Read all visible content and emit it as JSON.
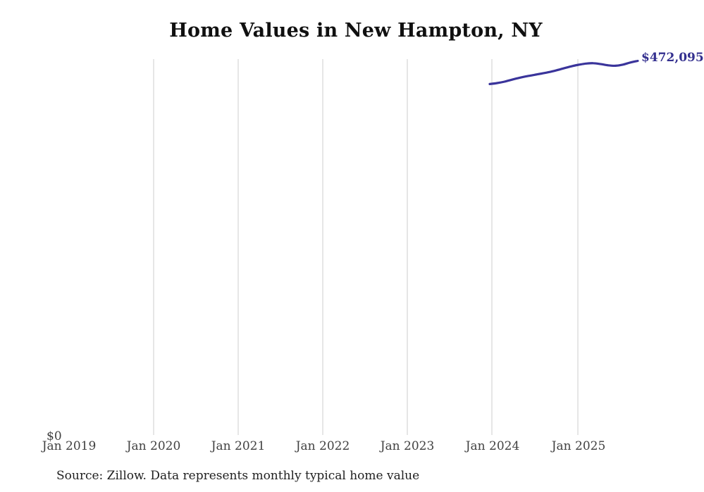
{
  "title": "Home Values in New Hampton, NY",
  "source_note": "Source: Zillow. Data represents monthly typical home value",
  "end_value_label": "$472,095",
  "axis": {
    "y_zero_label": "$0",
    "x_ticks": [
      "Jan 2019",
      "Jan 2020",
      "Jan 2021",
      "Jan 2022",
      "Jan 2023",
      "Jan 2024",
      "Jan 2025"
    ]
  },
  "colors": {
    "line": "#3a349b",
    "end_label_text": "#34308f",
    "gridline": "#cccccc",
    "axis_text": "#414141",
    "title_text": "#101010",
    "source_text": "#1f1f1f"
  },
  "chart_data": {
    "type": "line",
    "title": "Home Values in New Hampton, NY",
    "xlabel": "",
    "ylabel": "",
    "x_axis_tick_labels": [
      "Jan 2019",
      "Jan 2020",
      "Jan 2021",
      "Jan 2022",
      "Jan 2023",
      "Jan 2024",
      "Jan 2025"
    ],
    "ylim": [
      0,
      475000
    ],
    "grid": "vertical-yearly-gridlines-2020-2025",
    "legend": "none",
    "x": [
      "Jan 2024",
      "Feb 2024",
      "Mar 2024",
      "Apr 2024",
      "May 2024",
      "Jun 2024",
      "Jul 2024",
      "Aug 2024",
      "Sep 2024",
      "Oct 2024",
      "Nov 2024",
      "Dec 2024",
      "Jan 2025",
      "Feb 2025",
      "Mar 2025",
      "Apr 2025",
      "May 2025",
      "Jun 2025",
      "Jul 2025",
      "Aug 2025",
      "Sep 2025"
    ],
    "series": [
      {
        "name": "Monthly typical home value",
        "values": [
          443000,
          444200,
          446000,
          448500,
          450800,
          452800,
          454500,
          456200,
          458000,
          460200,
          462700,
          465200,
          467200,
          468700,
          469200,
          468000,
          466500,
          466000,
          467400,
          470100,
          472095
        ]
      }
    ],
    "annotations": [
      {
        "text": "$472,095",
        "position": "end-of-line",
        "note": "label clipped at right edge of image"
      },
      {
        "text": "$0",
        "position": "bottom-left-y-axis"
      }
    ]
  }
}
